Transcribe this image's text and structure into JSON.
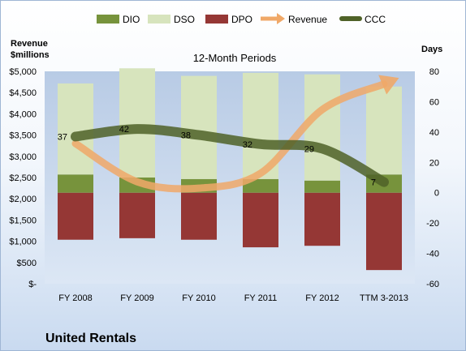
{
  "chart_data": {
    "type": "bar",
    "title": "12-Month Periods",
    "footer_title": "United Rentals",
    "left_axis_title": [
      "Revenue",
      "$millions"
    ],
    "right_axis_title": "Days",
    "categories": [
      "FY 2008",
      "FY 2009",
      "FY 2010",
      "FY 2011",
      "FY 2012",
      "TTM 3-2013"
    ],
    "left_axis": {
      "min": 0,
      "max": 5000,
      "step": 500,
      "tick_labels": [
        "$-",
        "$500",
        "$1,000",
        "$1,500",
        "$2,000",
        "$2,500",
        "$3,000",
        "$3,500",
        "$4,000",
        "$4,500",
        "$5,000"
      ]
    },
    "right_axis": {
      "min": -60,
      "max": 80,
      "step": 20,
      "tick_labels": [
        "-60",
        "-40",
        "-20",
        "0",
        "20",
        "40",
        "60",
        "80"
      ]
    },
    "series": [
      {
        "name": "DIO",
        "axis": "right",
        "color": "#77933c",
        "values": [
          12,
          10,
          9,
          9,
          8,
          12
        ]
      },
      {
        "name": "DSO",
        "axis": "right",
        "color": "#d7e4bd",
        "values": [
          60,
          72,
          68,
          70,
          70,
          58
        ]
      },
      {
        "name": "DPO",
        "axis": "right",
        "color": "#953735",
        "values": [
          -31,
          -30,
          -31,
          -36,
          -35,
          -51
        ]
      },
      {
        "name": "Revenue",
        "axis": "left",
        "color": "#f0a868",
        "values": [
          3300,
          2400,
          2250,
          2600,
          4100,
          4700
        ],
        "style": "arrow"
      },
      {
        "name": "CCC",
        "axis": "right",
        "color": "#4f6228",
        "values": [
          37,
          42,
          38,
          32,
          29,
          7
        ],
        "labels": [
          "37",
          "42",
          "38",
          "32",
          "29",
          "7"
        ]
      }
    ],
    "grid": false,
    "legend_position": "top"
  }
}
